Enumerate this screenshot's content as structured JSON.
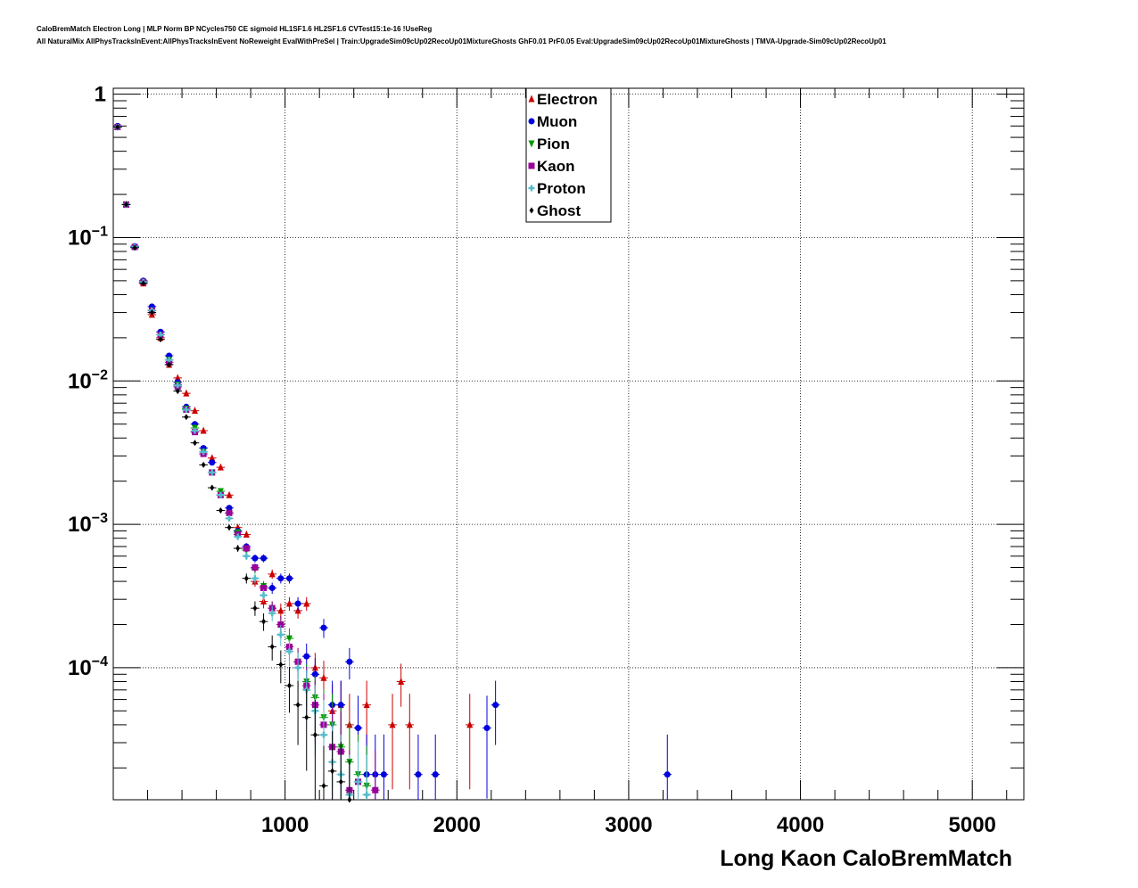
{
  "header": {
    "line1": "CaloBremMatch Electron Long | MLP Norm BP NCycles750 CE sigmoid HL1SF1.6 HL2SF1.6 CVTest15:1e-16 !UseReg",
    "line2": "All NaturalMix AllPhysTracksInEvent:AllPhysTracksInEvent NoReweight EvalWithPreSel | Train:UpgradeSim09cUp02RecoUp01MixtureGhosts GhF0.01 PrF0.05 Eval:UpgradeSim09cUp02RecoUp01MixtureGhosts | TMVA-Upgrade-Sim09cUp02RecoUp01"
  },
  "chart_data": {
    "type": "scatter",
    "title": "",
    "xlabel": "Long Kaon CaloBremMatch",
    "ylabel": "",
    "xlim": [
      0,
      5300
    ],
    "ylim": [
      1.2e-05,
      1.1
    ],
    "ylog": true,
    "grid": true,
    "legend_position": "top-center",
    "x_ticks": [
      {
        "value": 1000,
        "label": "1000"
      },
      {
        "value": 2000,
        "label": "2000"
      },
      {
        "value": 3000,
        "label": "3000"
      },
      {
        "value": 4000,
        "label": "4000"
      },
      {
        "value": 5000,
        "label": "5000"
      }
    ],
    "y_ticks": [
      {
        "value": 1,
        "base": "1",
        "exp": ""
      },
      {
        "value": 0.1,
        "base": "10",
        "exp": "−1"
      },
      {
        "value": 0.01,
        "base": "10",
        "exp": "−2"
      },
      {
        "value": 0.001,
        "base": "10",
        "exp": "−3"
      },
      {
        "value": 0.0001,
        "base": "10",
        "exp": "−4"
      }
    ],
    "series": [
      {
        "name": "Electron",
        "color": "#cc0000",
        "marker": "triangle-up",
        "points": [
          [
            25,
            0.59
          ],
          [
            75,
            0.17
          ],
          [
            125,
            0.086
          ],
          [
            175,
            0.048
          ],
          [
            225,
            0.029
          ],
          [
            275,
            0.02
          ],
          [
            325,
            0.013
          ],
          [
            375,
            0.0105
          ],
          [
            425,
            0.0082
          ],
          [
            475,
            0.0062
          ],
          [
            525,
            0.0045
          ],
          [
            575,
            0.0029
          ],
          [
            625,
            0.0025
          ],
          [
            675,
            0.0016
          ],
          [
            725,
            0.00095
          ],
          [
            775,
            0.00085
          ],
          [
            825,
            0.0004
          ],
          [
            875,
            0.00029
          ],
          [
            925,
            0.00045
          ],
          [
            975,
            0.00025
          ],
          [
            1025,
            0.00028
          ],
          [
            1075,
            0.00025
          ],
          [
            1125,
            0.00028
          ],
          [
            1175,
            0.0001
          ],
          [
            1225,
            8.5e-05
          ],
          [
            1275,
            5e-05
          ],
          [
            1325,
            5.5e-05
          ],
          [
            1375,
            4e-05
          ],
          [
            1475,
            5.5e-05
          ],
          [
            1625,
            4e-05
          ],
          [
            1675,
            8e-05
          ],
          [
            1725,
            4e-05
          ],
          [
            2075,
            4e-05
          ]
        ]
      },
      {
        "name": "Muon",
        "color": "#0000dd",
        "marker": "circle",
        "points": [
          [
            25,
            0.6
          ],
          [
            75,
            0.17
          ],
          [
            125,
            0.087
          ],
          [
            175,
            0.05
          ],
          [
            225,
            0.033
          ],
          [
            275,
            0.022
          ],
          [
            325,
            0.015
          ],
          [
            375,
            0.0098
          ],
          [
            425,
            0.0066
          ],
          [
            475,
            0.005
          ],
          [
            525,
            0.0034
          ],
          [
            575,
            0.0027
          ],
          [
            625,
            0.0016
          ],
          [
            675,
            0.0013
          ],
          [
            725,
            0.0009
          ],
          [
            775,
            0.0007
          ],
          [
            825,
            0.00058
          ],
          [
            875,
            0.00058
          ],
          [
            925,
            0.00036
          ],
          [
            975,
            0.00042
          ],
          [
            1025,
            0.00042
          ],
          [
            1075,
            0.00028
          ],
          [
            1125,
            0.00012
          ],
          [
            1175,
            9e-05
          ],
          [
            1225,
            0.00019
          ],
          [
            1275,
            5.5e-05
          ],
          [
            1325,
            5.5e-05
          ],
          [
            1375,
            0.00011
          ],
          [
            1425,
            3.8e-05
          ],
          [
            1475,
            1.8e-05
          ],
          [
            1525,
            1.8e-05
          ],
          [
            1575,
            1.8e-05
          ],
          [
            1775,
            1.8e-05
          ],
          [
            1875,
            1.8e-05
          ],
          [
            2175,
            3.8e-05
          ],
          [
            2225,
            5.5e-05
          ],
          [
            3225,
            1.8e-05
          ]
        ]
      },
      {
        "name": "Pion",
        "color": "#009900",
        "marker": "triangle-down",
        "points": [
          [
            25,
            0.59
          ],
          [
            75,
            0.17
          ],
          [
            125,
            0.086
          ],
          [
            175,
            0.049
          ],
          [
            225,
            0.031
          ],
          [
            275,
            0.021
          ],
          [
            325,
            0.014
          ],
          [
            375,
            0.0094
          ],
          [
            425,
            0.0064
          ],
          [
            475,
            0.0047
          ],
          [
            525,
            0.0032
          ],
          [
            575,
            0.0023
          ],
          [
            625,
            0.0017
          ],
          [
            675,
            0.0012
          ],
          [
            725,
            0.00088
          ],
          [
            775,
            0.00066
          ],
          [
            825,
            0.00049
          ],
          [
            875,
            0.00037
          ],
          [
            925,
            0.00026
          ],
          [
            975,
            0.0002
          ],
          [
            1025,
            0.00016
          ],
          [
            1075,
            0.00011
          ],
          [
            1125,
            8e-05
          ],
          [
            1175,
            6.2e-05
          ],
          [
            1225,
            4.5e-05
          ],
          [
            1275,
            4e-05
          ],
          [
            1325,
            2.8e-05
          ],
          [
            1375,
            2.2e-05
          ],
          [
            1425,
            1.8e-05
          ],
          [
            1475,
            1.5e-05
          ]
        ]
      },
      {
        "name": "Kaon",
        "color": "#990099",
        "marker": "square",
        "points": [
          [
            25,
            0.59
          ],
          [
            75,
            0.17
          ],
          [
            125,
            0.086
          ],
          [
            175,
            0.049
          ],
          [
            225,
            0.031
          ],
          [
            275,
            0.021
          ],
          [
            325,
            0.0135
          ],
          [
            375,
            0.0091
          ],
          [
            425,
            0.0063
          ],
          [
            475,
            0.0044
          ],
          [
            525,
            0.0031
          ],
          [
            575,
            0.0023
          ],
          [
            625,
            0.0016
          ],
          [
            675,
            0.0012
          ],
          [
            725,
            0.00085
          ],
          [
            775,
            0.00068
          ],
          [
            825,
            0.0005
          ],
          [
            875,
            0.00036
          ],
          [
            925,
            0.00026
          ],
          [
            975,
            0.0002
          ],
          [
            1025,
            0.00014
          ],
          [
            1075,
            0.00011
          ],
          [
            1125,
            7.5e-05
          ],
          [
            1175,
            5.5e-05
          ],
          [
            1225,
            4e-05
          ],
          [
            1275,
            2.8e-05
          ],
          [
            1325,
            2.6e-05
          ],
          [
            1375,
            1.4e-05
          ],
          [
            1425,
            1.6e-05
          ],
          [
            1525,
            1.4e-05
          ]
        ]
      },
      {
        "name": "Proton",
        "color": "#55bbcc",
        "marker": "cross",
        "points": [
          [
            25,
            0.59
          ],
          [
            75,
            0.17
          ],
          [
            125,
            0.086
          ],
          [
            175,
            0.049
          ],
          [
            225,
            0.031
          ],
          [
            275,
            0.021
          ],
          [
            325,
            0.014
          ],
          [
            375,
            0.0093
          ],
          [
            425,
            0.0063
          ],
          [
            475,
            0.0045
          ],
          [
            525,
            0.0032
          ],
          [
            575,
            0.0023
          ],
          [
            625,
            0.0016
          ],
          [
            675,
            0.0011
          ],
          [
            725,
            0.00082
          ],
          [
            775,
            0.0006
          ],
          [
            825,
            0.00042
          ],
          [
            875,
            0.00032
          ],
          [
            925,
            0.00024
          ],
          [
            975,
            0.00017
          ],
          [
            1025,
            0.00013
          ],
          [
            1075,
            0.0001
          ],
          [
            1125,
            7e-05
          ],
          [
            1175,
            5e-05
          ],
          [
            1225,
            3.4e-05
          ],
          [
            1275,
            2.2e-05
          ],
          [
            1325,
            1.8e-05
          ],
          [
            1375,
            1.3e-05
          ],
          [
            1425,
            1.6e-05
          ],
          [
            1475,
            1.3e-05
          ]
        ]
      },
      {
        "name": "Ghost",
        "color": "#000000",
        "marker": "diamond",
        "points": [
          [
            25,
            0.59
          ],
          [
            75,
            0.17
          ],
          [
            125,
            0.085
          ],
          [
            175,
            0.048
          ],
          [
            225,
            0.03
          ],
          [
            275,
            0.0195
          ],
          [
            325,
            0.013
          ],
          [
            375,
            0.0085
          ],
          [
            425,
            0.0056
          ],
          [
            475,
            0.0037
          ],
          [
            525,
            0.0026
          ],
          [
            575,
            0.0018
          ],
          [
            625,
            0.00125
          ],
          [
            675,
            0.00095
          ],
          [
            725,
            0.00068
          ],
          [
            775,
            0.00042
          ],
          [
            825,
            0.00026
          ],
          [
            875,
            0.00021
          ],
          [
            925,
            0.00014
          ],
          [
            975,
            0.000105
          ],
          [
            1025,
            7.5e-05
          ],
          [
            1075,
            5.5e-05
          ],
          [
            1125,
            4.5e-05
          ],
          [
            1175,
            3.4e-05
          ],
          [
            1225,
            1.5e-05
          ],
          [
            1275,
            1.9e-05
          ],
          [
            1325,
            1.6e-05
          ],
          [
            1375,
            1.2e-05
          ]
        ]
      }
    ]
  }
}
